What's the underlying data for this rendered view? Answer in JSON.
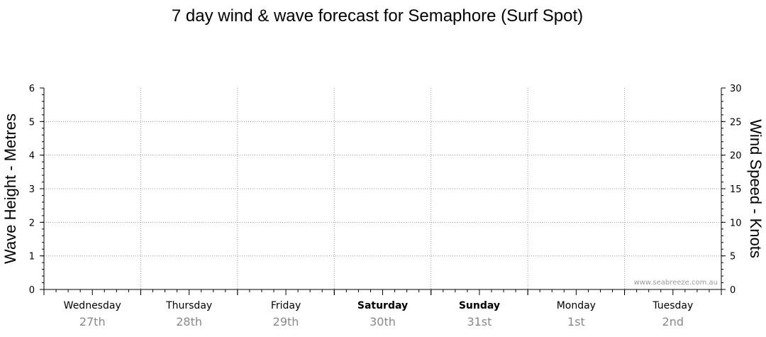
{
  "chart_data": {
    "type": "line",
    "title": "7 day wind & wave forecast for Semaphore  (Surf Spot)",
    "ylabel_left": "Wave Height - Metres",
    "ylabel_right": "Wind Speed - Knots",
    "ylim_left": [
      0,
      6
    ],
    "ylim_right": [
      0,
      30
    ],
    "yticks_left": [
      "0",
      "1",
      "2",
      "3",
      "4",
      "5",
      "6"
    ],
    "yticks_right": [
      "0",
      "5",
      "10",
      "15",
      "20",
      "25",
      "30"
    ],
    "grid": true,
    "days": [
      {
        "name": "Wednesday",
        "date": "27th",
        "bold": false
      },
      {
        "name": "Thursday",
        "date": "28th",
        "bold": false
      },
      {
        "name": "Friday",
        "date": "29th",
        "bold": false
      },
      {
        "name": "Saturday",
        "date": "30th",
        "bold": true
      },
      {
        "name": "Sunday",
        "date": "31st",
        "bold": true
      },
      {
        "name": "Monday",
        "date": "1st",
        "bold": false
      },
      {
        "name": "Tuesday",
        "date": "2nd",
        "bold": false
      }
    ],
    "series": [],
    "watermark": "www.seabreeze.com.au"
  }
}
